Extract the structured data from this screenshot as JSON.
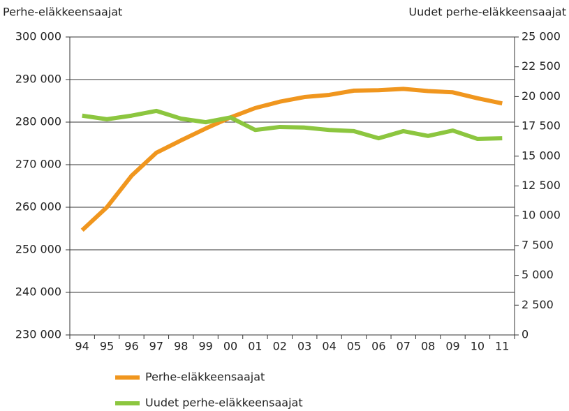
{
  "chart_data": {
    "type": "line",
    "y_label": "Perhe-eläkkeensaajat",
    "y2_label": "Uudet perhe-eläkkeensaajat",
    "categories": [
      "94",
      "95",
      "96",
      "97",
      "98",
      "99",
      "00",
      "01",
      "02",
      "03",
      "04",
      "05",
      "06",
      "07",
      "08",
      "09",
      "10",
      "11"
    ],
    "series": [
      {
        "name": "Perhe-eläkkeensaajat",
        "color": "#f0961e",
        "values": [
          254600,
          260000,
          267400,
          272800,
          275700,
          278500,
          281100,
          283300,
          284800,
          285900,
          286400,
          287400,
          287500,
          287800,
          287300,
          287000,
          285600,
          284400
        ]
      },
      {
        "name": "Uudet perhe-eläkkeensaajat",
        "color": "#8cc63f",
        "axis": "y2",
        "values": [
          18400,
          18100,
          18400,
          18800,
          18150,
          17850,
          18250,
          17200,
          17450,
          17400,
          17200,
          17100,
          16500,
          17100,
          16700,
          17150,
          16450,
          16500
        ]
      }
    ],
    "ylim": [
      230000,
      300000
    ],
    "yticks": [
      {
        "value": 230000,
        "label": "230 000"
      },
      {
        "value": 240000,
        "label": "240 000"
      },
      {
        "value": 250000,
        "label": "250 000"
      },
      {
        "value": 260000,
        "label": "260 000"
      },
      {
        "value": 270000,
        "label": "270 000"
      },
      {
        "value": 280000,
        "label": "280 000"
      },
      {
        "value": 290000,
        "label": "290 000"
      },
      {
        "value": 300000,
        "label": "300 000"
      }
    ],
    "y2lim": [
      0,
      25000
    ],
    "y2ticks": [
      0,
      {
        "value": 2500,
        "label": "2 500"
      },
      {
        "value": 5000,
        "label": "5 000"
      },
      {
        "value": 7500,
        "label": "7 500"
      },
      {
        "value": 10000,
        "label": "10 000"
      },
      {
        "value": 12500,
        "label": "12 500"
      },
      {
        "value": 15000,
        "label": "15 000"
      },
      {
        "value": 17500,
        "label": "17 500"
      },
      {
        "value": 20000,
        "label": "20 000"
      },
      {
        "value": 22500,
        "label": "22 500"
      },
      {
        "value": 25000,
        "label": "25 000"
      }
    ],
    "grid": true
  }
}
